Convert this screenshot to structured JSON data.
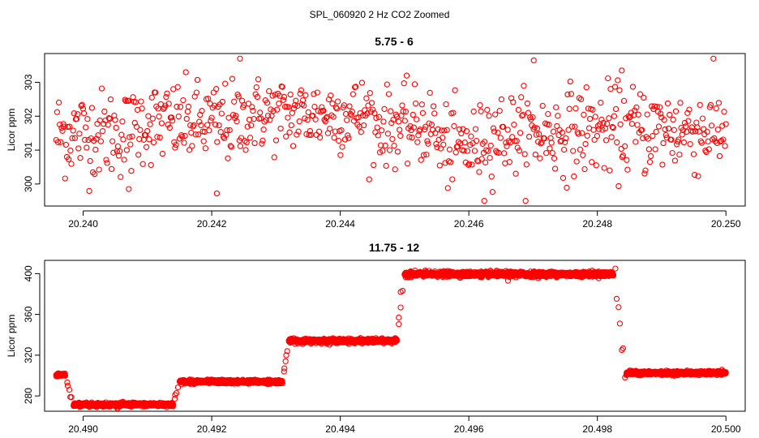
{
  "figure": {
    "title": "SPL_060920  2 Hz CO2 Zoomed",
    "point_color": "#ff0000"
  },
  "chart_data": [
    {
      "type": "scatter",
      "title": "5.75 - 6",
      "xlabel": "",
      "ylabel": "Licor ppm",
      "xlim": [
        20.2394,
        20.2503
      ],
      "ylim": [
        299.35,
        303.85
      ],
      "x_ticks": [
        20.24,
        20.242,
        20.244,
        20.246,
        20.248,
        20.25
      ],
      "x_tick_labels": [
        "20.240",
        "20.242",
        "20.244",
        "20.246",
        "20.248",
        "20.250"
      ],
      "y_ticks": [
        300,
        301,
        302,
        303
      ],
      "y_tick_labels": [
        "300",
        "301",
        "302",
        "303"
      ],
      "grid": false,
      "series": [
        {
          "x_start": 20.23958,
          "x_end": 20.25,
          "count": 750,
          "segments": [
            {
              "x": [
                20.23958,
                20.2408
              ],
              "mean": 301.5,
              "sd": 0.65
            },
            {
              "x": [
                20.2408,
                20.2425
              ],
              "mean": 301.8,
              "sd": 0.6
            },
            {
              "x": [
                20.2425,
                20.2445
              ],
              "mean": 302.05,
              "sd": 0.55
            },
            {
              "x": [
                20.2445,
                20.2455
              ],
              "mean": 301.7,
              "sd": 0.55
            },
            {
              "x": [
                20.2455,
                20.2462
              ],
              "mean": 301.1,
              "sd": 0.6
            },
            {
              "x": [
                20.2462,
                20.2475
              ],
              "mean": 301.5,
              "sd": 0.6
            },
            {
              "x": [
                20.2475,
                20.25
              ],
              "mean": 301.6,
              "sd": 0.65
            }
          ],
          "outliers": [
            {
              "x": 20.24244,
              "y": 303.7
            },
            {
              "x": 20.24701,
              "y": 303.65
            },
            {
              "x": 20.24208,
              "y": 299.72
            },
            {
              "x": 20.24624,
              "y": 299.5
            },
            {
              "x": 20.24071,
              "y": 299.85
            },
            {
              "x": 20.24838,
              "y": 303.35
            }
          ]
        }
      ]
    },
    {
      "type": "scatter",
      "title": "11.75 - 12",
      "xlabel": "",
      "ylabel": "Licor ppm",
      "xlim": [
        20.4894,
        20.5003
      ],
      "ylim": [
        265,
        413
      ],
      "x_ticks": [
        20.49,
        20.492,
        20.494,
        20.496,
        20.498,
        20.5
      ],
      "x_tick_labels": [
        "20.490",
        "20.492",
        "20.494",
        "20.496",
        "20.498",
        "20.500"
      ],
      "y_ticks": [
        280,
        320,
        360,
        400
      ],
      "y_tick_labels": [
        "280",
        "320",
        "360",
        "400"
      ],
      "grid": false,
      "series": [
        {
          "x_start": 20.48958,
          "x_end": 20.5,
          "levels": [
            {
              "x": [
                20.48958,
                20.48972
              ],
              "mean": 300.5,
              "sd": 0.8
            },
            {
              "x": [
                20.48985,
                20.4914
              ],
              "mean": 271.5,
              "sd": 0.9
            },
            {
              "x": [
                20.4915,
                20.4931
              ],
              "mean": 294,
              "sd": 0.9
            },
            {
              "x": [
                20.4932,
                20.49488
              ],
              "mean": 334,
              "sd": 1.0
            },
            {
              "x": [
                20.495,
                20.49825
              ],
              "mean": 399.5,
              "sd": 1.2
            },
            {
              "x": [
                20.49845,
                20.5
              ],
              "mean": 302.5,
              "sd": 0.9
            }
          ],
          "transitions": [
            {
              "x": [
                20.48972,
                20.48985
              ],
              "y": [
                300.5,
                271.5
              ]
            },
            {
              "x": [
                20.4914,
                20.4915
              ],
              "y": [
                271.5,
                294
              ]
            },
            {
              "x": [
                20.4931,
                20.4932
              ],
              "y": [
                294,
                334
              ]
            },
            {
              "x": [
                20.49488,
                20.495
              ],
              "y": [
                334,
                399.5
              ]
            },
            {
              "x": [
                20.49825,
                20.49845
              ],
              "y": [
                399.5,
                302.5
              ]
            }
          ],
          "outliers": [
            {
              "x": 20.49828,
              "y": 405
            },
            {
              "x": 20.49833,
              "y": 367
            },
            {
              "x": 20.49838,
              "y": 325
            },
            {
              "x": 20.49843,
              "y": 298
            },
            {
              "x": 20.49661,
              "y": 393
            },
            {
              "x": 20.49491,
              "y": 357
            },
            {
              "x": 20.49494,
              "y": 382
            },
            {
              "x": 20.49313,
              "y": 307
            },
            {
              "x": 20.49316,
              "y": 320
            },
            {
              "x": 20.49143,
              "y": 281
            },
            {
              "x": 20.48976,
              "y": 290
            },
            {
              "x": 20.4898,
              "y": 279
            }
          ]
        }
      ]
    }
  ]
}
